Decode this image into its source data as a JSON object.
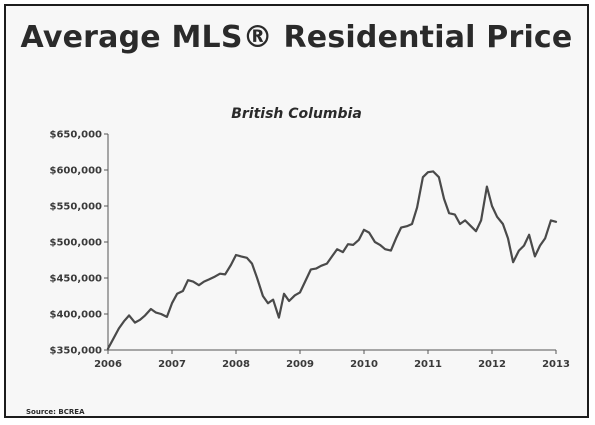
{
  "chart_data": {
    "type": "line",
    "title": "Average MLS® Residential Price",
    "subtitle": "British Columbia",
    "source": "Source: BCREA",
    "xlabel": "",
    "ylabel": "",
    "xlim": [
      2006,
      2013
    ],
    "ylim": [
      350000,
      650000
    ],
    "x_ticks": [
      2006,
      2007,
      2008,
      2009,
      2010,
      2011,
      2012,
      2013
    ],
    "y_ticks": [
      350000,
      400000,
      450000,
      500000,
      550000,
      600000,
      650000
    ],
    "y_tick_labels": [
      "$350,000",
      "$400,000",
      "$450,000",
      "$500,000",
      "$550,000",
      "$600,000",
      "$650,000"
    ],
    "x_tick_labels": [
      "2006",
      "2007",
      "2008",
      "2009",
      "2010",
      "2011",
      "2012",
      "2013"
    ],
    "grid": false,
    "line_color": "#4a4a4a",
    "series": [
      {
        "x": [
          2006.0,
          2006.08,
          2006.17,
          2006.25,
          2006.33,
          2006.42,
          2006.5,
          2006.58,
          2006.67,
          2006.75,
          2006.83,
          2006.92,
          2007.0,
          2007.08,
          2007.17,
          2007.25,
          2007.33,
          2007.42,
          2007.5,
          2007.58,
          2007.67,
          2007.75,
          2007.83,
          2007.92,
          2008.0,
          2008.08,
          2008.17,
          2008.25,
          2008.33,
          2008.42,
          2008.5,
          2008.58,
          2008.67,
          2008.75,
          2008.83,
          2008.92,
          2009.0,
          2009.08,
          2009.17,
          2009.25,
          2009.33,
          2009.42,
          2009.5,
          2009.58,
          2009.67,
          2009.75,
          2009.83,
          2009.92,
          2010.0,
          2010.08,
          2010.17,
          2010.25,
          2010.33,
          2010.42,
          2010.5,
          2010.58,
          2010.67,
          2010.75,
          2010.83,
          2010.92,
          2011.0,
          2011.08,
          2011.17,
          2011.25,
          2011.33,
          2011.42,
          2011.5,
          2011.58,
          2011.67,
          2011.75,
          2011.83,
          2011.92,
          2012.0,
          2012.08,
          2012.17,
          2012.25,
          2012.33,
          2012.42,
          2012.5,
          2012.58,
          2012.67,
          2012.75,
          2012.83,
          2012.92,
          2013.0
        ],
        "values": [
          352000,
          365000,
          380000,
          390000,
          398000,
          388000,
          392000,
          398000,
          407000,
          402000,
          400000,
          396000,
          415000,
          428000,
          432000,
          447000,
          445000,
          440000,
          445000,
          448000,
          452000,
          456000,
          455000,
          468000,
          482000,
          480000,
          478000,
          470000,
          450000,
          425000,
          415000,
          420000,
          395000,
          428000,
          418000,
          426000,
          430000,
          445000,
          462000,
          463000,
          467000,
          470000,
          480000,
          490000,
          486000,
          497000,
          496000,
          503000,
          517000,
          513000,
          500000,
          496000,
          490000,
          488000,
          505000,
          520000,
          522000,
          525000,
          548000,
          590000,
          597000,
          598000,
          590000,
          560000,
          540000,
          538000,
          525000,
          530000,
          522000,
          515000,
          530000,
          577000,
          550000,
          535000,
          525000,
          505000,
          472000,
          488000,
          495000,
          510000,
          480000,
          495000,
          505000,
          530000,
          528000
        ]
      }
    ]
  }
}
